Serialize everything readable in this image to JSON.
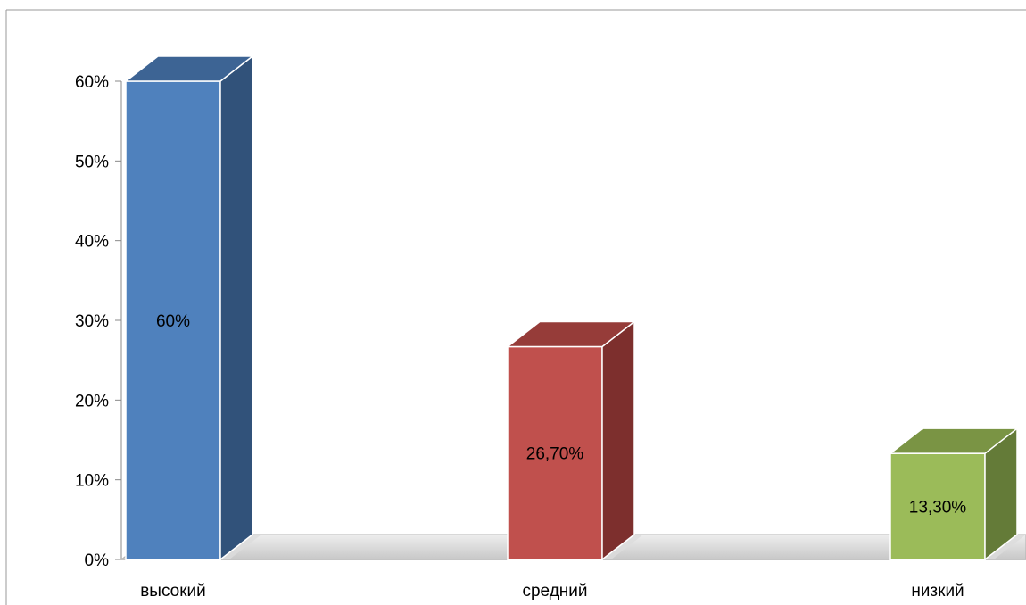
{
  "chart_data": {
    "type": "bar",
    "style": "3d-column",
    "categories": [
      "высокий",
      "средний",
      "низкий"
    ],
    "values": [
      60,
      26.7,
      13.3
    ],
    "data_labels": [
      "60%",
      "26,70%",
      "13,30%"
    ],
    "colors": [
      "#4f81bd",
      "#c0504d",
      "#9bbb59"
    ],
    "side_colors": [
      "#31527a",
      "#7d2f2d",
      "#647b38"
    ],
    "top_colors": [
      "#3d6494",
      "#963c39",
      "#7a9444"
    ],
    "y_ticks": [
      0,
      10,
      20,
      30,
      40,
      50,
      60
    ],
    "y_tick_labels": [
      "0%",
      "10%",
      "20%",
      "30%",
      "40%",
      "50%",
      "60%"
    ],
    "ylim": [
      0,
      60
    ],
    "title": "",
    "xlabel": "",
    "ylabel": "",
    "grid": false,
    "legend": "none"
  }
}
